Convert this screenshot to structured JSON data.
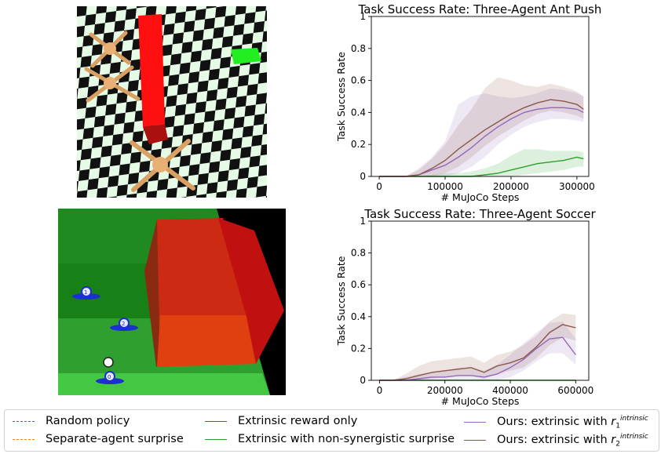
{
  "chart_data": [
    {
      "type": "line",
      "title": "Task Success Rate: Three-Agent Ant Push",
      "xlabel": "# MuJoCo Steps",
      "ylabel": "Task Success Rate",
      "xlim": [
        -12000,
        318000
      ],
      "ylim": [
        0,
        1.0
      ],
      "xticks": [
        0,
        100000,
        200000,
        300000
      ],
      "yticks": [
        0.0,
        0.2,
        0.4,
        0.6,
        0.8,
        1.0
      ],
      "series": [
        {
          "name": "Extrinsic with non-synergistic surprise",
          "color": "#2ca02c",
          "x": [
            0,
            20000,
            40000,
            60000,
            80000,
            100000,
            120000,
            140000,
            160000,
            180000,
            200000,
            220000,
            240000,
            260000,
            280000,
            300000,
            310000
          ],
          "y": [
            0,
            0,
            0,
            0,
            0,
            0,
            0,
            0,
            0.01,
            0.02,
            0.04,
            0.06,
            0.08,
            0.09,
            0.1,
            0.12,
            0.11
          ],
          "lower": [
            0,
            0,
            0,
            0,
            0,
            0,
            0,
            0,
            0,
            0,
            0,
            0.01,
            0.02,
            0.03,
            0.04,
            0.06,
            0.06
          ],
          "upper": [
            0,
            0,
            0,
            0,
            0.01,
            0.02,
            0.02,
            0.03,
            0.05,
            0.08,
            0.13,
            0.17,
            0.17,
            0.16,
            0.16,
            0.16,
            0.15
          ]
        },
        {
          "name": "Ours: extrinsic with r1 intrinsic",
          "color": "#9467bd",
          "x": [
            0,
            20000,
            40000,
            60000,
            80000,
            100000,
            120000,
            140000,
            160000,
            180000,
            200000,
            220000,
            240000,
            260000,
            280000,
            300000,
            310000
          ],
          "y": [
            0,
            0,
            0,
            0.01,
            0.04,
            0.07,
            0.12,
            0.18,
            0.25,
            0.31,
            0.36,
            0.4,
            0.42,
            0.43,
            0.43,
            0.42,
            0.4
          ],
          "lower": [
            0,
            0,
            0,
            0,
            0,
            0,
            0.02,
            0.06,
            0.12,
            0.2,
            0.26,
            0.31,
            0.34,
            0.36,
            0.36,
            0.35,
            0.34
          ],
          "upper": [
            0,
            0,
            0,
            0.05,
            0.12,
            0.22,
            0.45,
            0.5,
            0.52,
            0.5,
            0.49,
            0.5,
            0.52,
            0.55,
            0.54,
            0.52,
            0.5
          ]
        },
        {
          "name": "Ours: extrinsic with r2 intrinsic",
          "color": "#8c564b",
          "x": [
            0,
            20000,
            40000,
            60000,
            80000,
            100000,
            120000,
            140000,
            160000,
            180000,
            200000,
            220000,
            240000,
            260000,
            280000,
            300000,
            310000
          ],
          "y": [
            0,
            0,
            0,
            0.01,
            0.05,
            0.1,
            0.17,
            0.23,
            0.29,
            0.34,
            0.39,
            0.43,
            0.46,
            0.48,
            0.47,
            0.45,
            0.42
          ],
          "lower": [
            0,
            0,
            0,
            0,
            0,
            0.02,
            0.06,
            0.12,
            0.19,
            0.25,
            0.3,
            0.35,
            0.39,
            0.41,
            0.4,
            0.38,
            0.36
          ],
          "upper": [
            0,
            0,
            0,
            0.04,
            0.11,
            0.2,
            0.32,
            0.42,
            0.55,
            0.62,
            0.6,
            0.57,
            0.56,
            0.58,
            0.56,
            0.53,
            0.5
          ]
        }
      ]
    },
    {
      "type": "line",
      "title": "Task Success Rate: Three-Agent Soccer",
      "xlabel": "# MuJoCo Steps",
      "ylabel": "Task Success Rate",
      "xlim": [
        -25000,
        640000
      ],
      "ylim": [
        0,
        1.0
      ],
      "xticks": [
        0,
        200000,
        400000,
        600000
      ],
      "yticks": [
        0.0,
        0.2,
        0.4,
        0.6,
        0.8,
        1.0
      ],
      "series": [
        {
          "name": "Extrinsic with non-synergistic surprise",
          "color": "#2ca02c",
          "x": [
            0,
            100000,
            200000,
            300000,
            400000,
            500000,
            600000
          ],
          "y": [
            0,
            0,
            0,
            0,
            0,
            0,
            0
          ],
          "lower": [
            0,
            0,
            0,
            0,
            0,
            0,
            0
          ],
          "upper": [
            0,
            0,
            0,
            0,
            0,
            0,
            0
          ]
        },
        {
          "name": "Ours: extrinsic with r1 intrinsic",
          "color": "#9467bd",
          "x": [
            0,
            40000,
            80000,
            120000,
            160000,
            200000,
            240000,
            280000,
            320000,
            360000,
            400000,
            440000,
            480000,
            520000,
            560000,
            600000
          ],
          "y": [
            0,
            0,
            0,
            0.01,
            0.02,
            0.02,
            0.03,
            0.03,
            0.02,
            0.04,
            0.08,
            0.13,
            0.2,
            0.26,
            0.27,
            0.16
          ],
          "lower": [
            0,
            0,
            0,
            0,
            0,
            0,
            0,
            0,
            0,
            0,
            0.02,
            0.06,
            0.12,
            0.17,
            0.17,
            0.1
          ],
          "upper": [
            0,
            0,
            0.02,
            0.04,
            0.05,
            0.06,
            0.08,
            0.08,
            0.06,
            0.1,
            0.16,
            0.23,
            0.3,
            0.36,
            0.37,
            0.26
          ]
        },
        {
          "name": "Ours: extrinsic with r2 intrinsic",
          "color": "#8c564b",
          "x": [
            0,
            40000,
            80000,
            120000,
            160000,
            200000,
            240000,
            280000,
            320000,
            360000,
            400000,
            440000,
            480000,
            520000,
            560000,
            600000
          ],
          "y": [
            0,
            0,
            0.01,
            0.03,
            0.05,
            0.06,
            0.07,
            0.08,
            0.05,
            0.09,
            0.11,
            0.14,
            0.21,
            0.3,
            0.35,
            0.33
          ],
          "lower": [
            0,
            0,
            0,
            0,
            0.01,
            0.02,
            0.03,
            0.03,
            0.01,
            0.04,
            0.06,
            0.08,
            0.14,
            0.22,
            0.27,
            0.25
          ],
          "upper": [
            0,
            0,
            0.04,
            0.09,
            0.12,
            0.13,
            0.14,
            0.15,
            0.11,
            0.16,
            0.18,
            0.22,
            0.28,
            0.37,
            0.42,
            0.41
          ]
        }
      ]
    }
  ],
  "legend": {
    "items": [
      {
        "label": "Random policy",
        "color": "#1f77b4",
        "style": "dashed"
      },
      {
        "label": "Separate-agent surprise",
        "color": "#ff7f0e",
        "style": "dashed"
      },
      {
        "label": "Extrinsic reward only",
        "color": "#d62728",
        "style": "solid"
      },
      {
        "label": "Extrinsic with non-synergistic surprise",
        "color": "#2ca02c",
        "style": "solid"
      },
      {
        "label_main": "Ours: extrinsic with ",
        "label_var": "r",
        "label_sub": "1",
        "label_sup": "intrinsic",
        "color": "#9467bd",
        "style": "solid"
      },
      {
        "label_main": "Ours: extrinsic with ",
        "label_var": "r",
        "label_sub": "2",
        "label_sup": "intrinsic",
        "color": "#8c564b",
        "style": "solid"
      }
    ]
  },
  "scenes": {
    "ant_push_icon": "ant-push-scene",
    "soccer_icon": "soccer-scene",
    "soccer_player_numbers": [
      "1",
      "2",
      "0"
    ]
  }
}
